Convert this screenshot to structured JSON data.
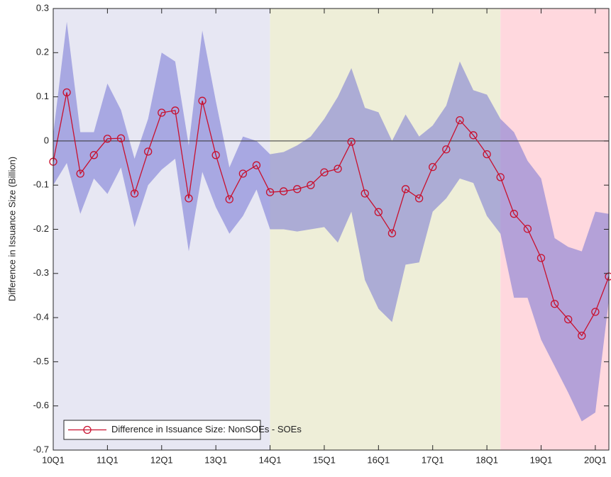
{
  "chart_data": {
    "type": "line",
    "y_label": "Difference in Issuance Size (Billion)",
    "categories": [
      "10Q1",
      null,
      null,
      null,
      "11Q1",
      null,
      null,
      null,
      "12Q1",
      null,
      null,
      null,
      "13Q1",
      null,
      null,
      null,
      "14Q1",
      null,
      null,
      null,
      "15Q1",
      null,
      null,
      null,
      "16Q1",
      null,
      null,
      null,
      "17Q1",
      null,
      null,
      null,
      "18Q1",
      null,
      null,
      null,
      "19Q1",
      null,
      null,
      null,
      "20Q1",
      null
    ],
    "series": [
      {
        "name": "Difference in Issuance Size: NonSOEs - SOEs",
        "color": "#c8102e",
        "values": [
          -0.047,
          0.11,
          -0.074,
          -0.032,
          0.005,
          0.006,
          -0.119,
          -0.024,
          0.064,
          0.069,
          -0.13,
          0.091,
          -0.032,
          -0.132,
          -0.074,
          -0.055,
          -0.116,
          -0.114,
          -0.109,
          -0.1,
          -0.071,
          -0.063,
          -0.002,
          -0.119,
          -0.161,
          -0.209,
          -0.109,
          -0.13,
          -0.059,
          -0.019,
          0.047,
          0.013,
          -0.03,
          -0.082,
          -0.165,
          -0.199,
          -0.265,
          -0.369,
          -0.404,
          -0.441,
          -0.387,
          -0.307
        ]
      }
    ],
    "band": {
      "color": "#6a6ad2",
      "upper": [
        0.015,
        0.27,
        0.02,
        0.02,
        0.13,
        0.07,
        -0.04,
        0.05,
        0.2,
        0.18,
        -0.01,
        0.25,
        0.09,
        -0.06,
        0.01,
        0.0,
        -0.03,
        -0.025,
        -0.01,
        0.01,
        0.05,
        0.1,
        0.165,
        0.075,
        0.065,
        0.0,
        0.06,
        0.01,
        0.035,
        0.08,
        0.18,
        0.115,
        0.105,
        0.05,
        0.02,
        -0.045,
        -0.085,
        -0.22,
        -0.24,
        -0.25,
        -0.16,
        -0.165
      ],
      "lower": [
        -0.1,
        -0.05,
        -0.165,
        -0.085,
        -0.12,
        -0.06,
        -0.195,
        -0.1,
        -0.065,
        -0.04,
        -0.25,
        -0.07,
        -0.15,
        -0.21,
        -0.17,
        -0.11,
        -0.2,
        -0.2,
        -0.205,
        -0.2,
        -0.195,
        -0.23,
        -0.16,
        -0.315,
        -0.38,
        -0.41,
        -0.28,
        -0.275,
        -0.16,
        -0.13,
        -0.085,
        -0.095,
        -0.17,
        -0.21,
        -0.355,
        -0.355,
        -0.45,
        -0.51,
        -0.57,
        -0.635,
        -0.615,
        -0.36
      ]
    },
    "shaded_regions": [
      {
        "start": 0,
        "end": 16,
        "color": "#e7e7f3"
      },
      {
        "start": 16,
        "end": 33,
        "color": "#eeeed8"
      },
      {
        "start": 33,
        "end": 41,
        "color": "#ffd8de"
      }
    ],
    "ylim": [
      -0.7,
      0.3
    ],
    "yticks": [
      -0.7,
      -0.6,
      -0.5,
      -0.4,
      -0.3,
      -0.2,
      -0.1,
      0,
      0.1,
      0.2,
      0.3
    ],
    "zero_line": true,
    "legend": "lower left"
  }
}
